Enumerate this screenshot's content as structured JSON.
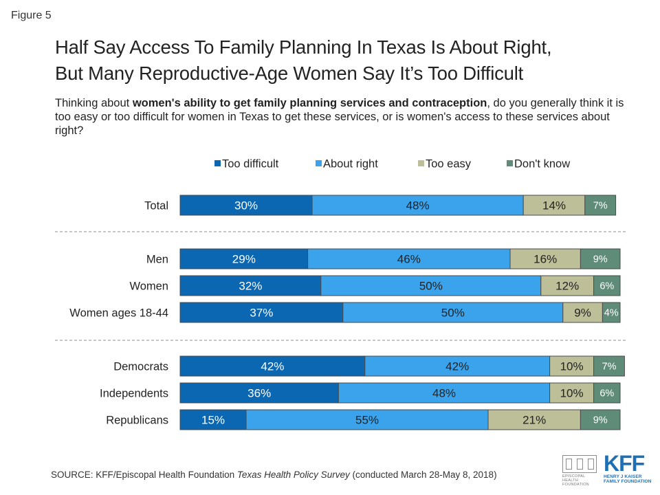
{
  "figure_label": "Figure 5",
  "title_line1": "Half Say Access To Family Planning In Texas Is About Right,",
  "title_line2": "But Many Reproductive-Age Women Say It’s Too Difficult",
  "question": {
    "pre": "Thinking about ",
    "bold": "women's ability to get family planning services and contraception",
    "post": ", do you generally think it is too easy or too difficult for women in Texas to get these services, or is women's access to these services about right?"
  },
  "source": {
    "pre": "SOURCE: KFF/Episcopal Health Foundation ",
    "italic": "Texas Health Policy Survey",
    "post": " (conducted March 28-May 8, 2018)"
  },
  "logos": {
    "ehf_text": "EPISCOPAL HEALTH FOUNDATION",
    "kff_mark": "KFF",
    "kff_sub_line1": "HENRY J KAISER",
    "kff_sub_line2": "FAMILY FOUNDATION"
  },
  "chart_data": {
    "type": "bar",
    "orientation": "horizontal",
    "stacked": true,
    "legend_position": "top",
    "categories": [
      "Total",
      "Men",
      "Women",
      "Women ages 18-44",
      "Democrats",
      "Independents",
      "Republicans"
    ],
    "groups": [
      [
        "Total"
      ],
      [
        "Men",
        "Women",
        "Women ages 18-44"
      ],
      [
        "Democrats",
        "Independents",
        "Republicans"
      ]
    ],
    "series": [
      {
        "name": "Too difficult",
        "color": "#0b67b2",
        "values": [
          30,
          29,
          32,
          37,
          42,
          36,
          15
        ]
      },
      {
        "name": "About right",
        "color": "#3aa3ec",
        "values": [
          48,
          46,
          50,
          50,
          42,
          48,
          55
        ]
      },
      {
        "name": "Too easy",
        "color": "#bcbf98",
        "values": [
          14,
          16,
          12,
          9,
          10,
          10,
          21
        ]
      },
      {
        "name": "Don't know",
        "color": "#5f8c78",
        "values": [
          7,
          9,
          6,
          4,
          7,
          6,
          9
        ]
      }
    ]
  }
}
